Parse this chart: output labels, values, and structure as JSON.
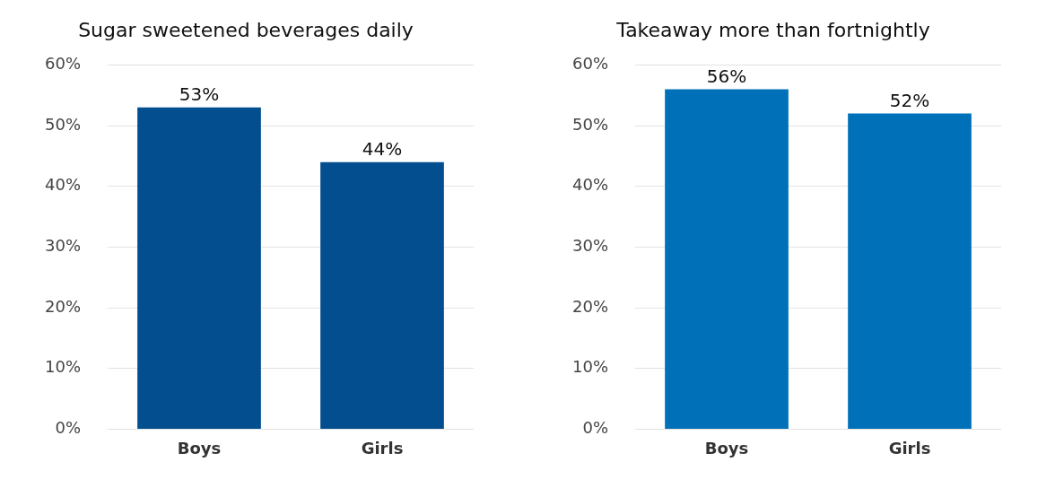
{
  "chart_data": [
    {
      "type": "bar",
      "title": "Sugar sweetened beverages daily",
      "categories": [
        "Boys",
        "Girls"
      ],
      "values": [
        53,
        44
      ],
      "color": "#024e8e",
      "value_labels": [
        "53%",
        "44%"
      ],
      "ylim": [
        0,
        60
      ],
      "yticks": [
        {
          "value": 0,
          "label": "0%"
        },
        {
          "value": 10,
          "label": "10%"
        },
        {
          "value": 20,
          "label": "20%"
        },
        {
          "value": 30,
          "label": "30%"
        },
        {
          "value": 40,
          "label": "40%"
        },
        {
          "value": 50,
          "label": "50%"
        },
        {
          "value": 60,
          "label": "60%"
        }
      ],
      "grid": "y"
    },
    {
      "type": "bar",
      "title": "Takeaway more than fortnightly",
      "categories": [
        "Boys",
        "Girls"
      ],
      "values": [
        56,
        52
      ],
      "color": "#0071b9",
      "value_labels": [
        "56%",
        "52%"
      ],
      "ylim": [
        0,
        60
      ],
      "yticks": [
        {
          "value": 0,
          "label": "0%"
        },
        {
          "value": 10,
          "label": "10%"
        },
        {
          "value": 20,
          "label": "20%"
        },
        {
          "value": 30,
          "label": "30%"
        },
        {
          "value": 40,
          "label": "40%"
        },
        {
          "value": 50,
          "label": "50%"
        },
        {
          "value": 60,
          "label": "60%"
        }
      ],
      "grid": "y"
    }
  ]
}
